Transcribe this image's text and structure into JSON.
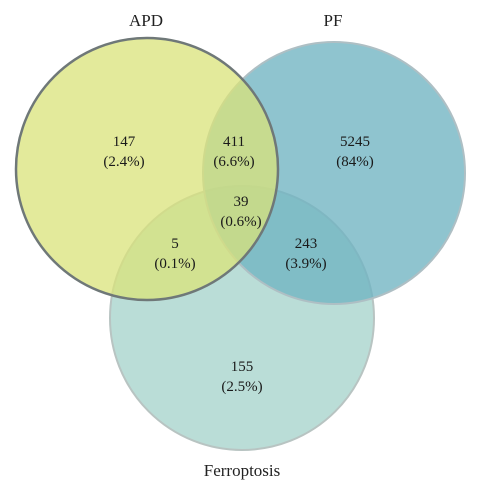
{
  "sets": {
    "apd": {
      "label": "APD",
      "color": "#d9e37a"
    },
    "pf": {
      "label": "PF",
      "color": "#6fb3c2"
    },
    "ferroptosis": {
      "label": "Ferroptosis",
      "color": "#9fd0c7"
    }
  },
  "regions": {
    "apd_only": {
      "count": "147",
      "pct": "(2.4%)"
    },
    "apd_pf": {
      "count": "411",
      "pct": "(6.6%)"
    },
    "pf_only": {
      "count": "5245",
      "pct": "(84%)"
    },
    "all_three": {
      "count": "39",
      "pct": "(0.6%)"
    },
    "apd_ferroptosis": {
      "count": "5",
      "pct": "(0.1%)"
    },
    "pf_ferroptosis": {
      "count": "243",
      "pct": "(3.9%)"
    },
    "ferroptosis_only": {
      "count": "155",
      "pct": "(2.5%)"
    }
  }
}
